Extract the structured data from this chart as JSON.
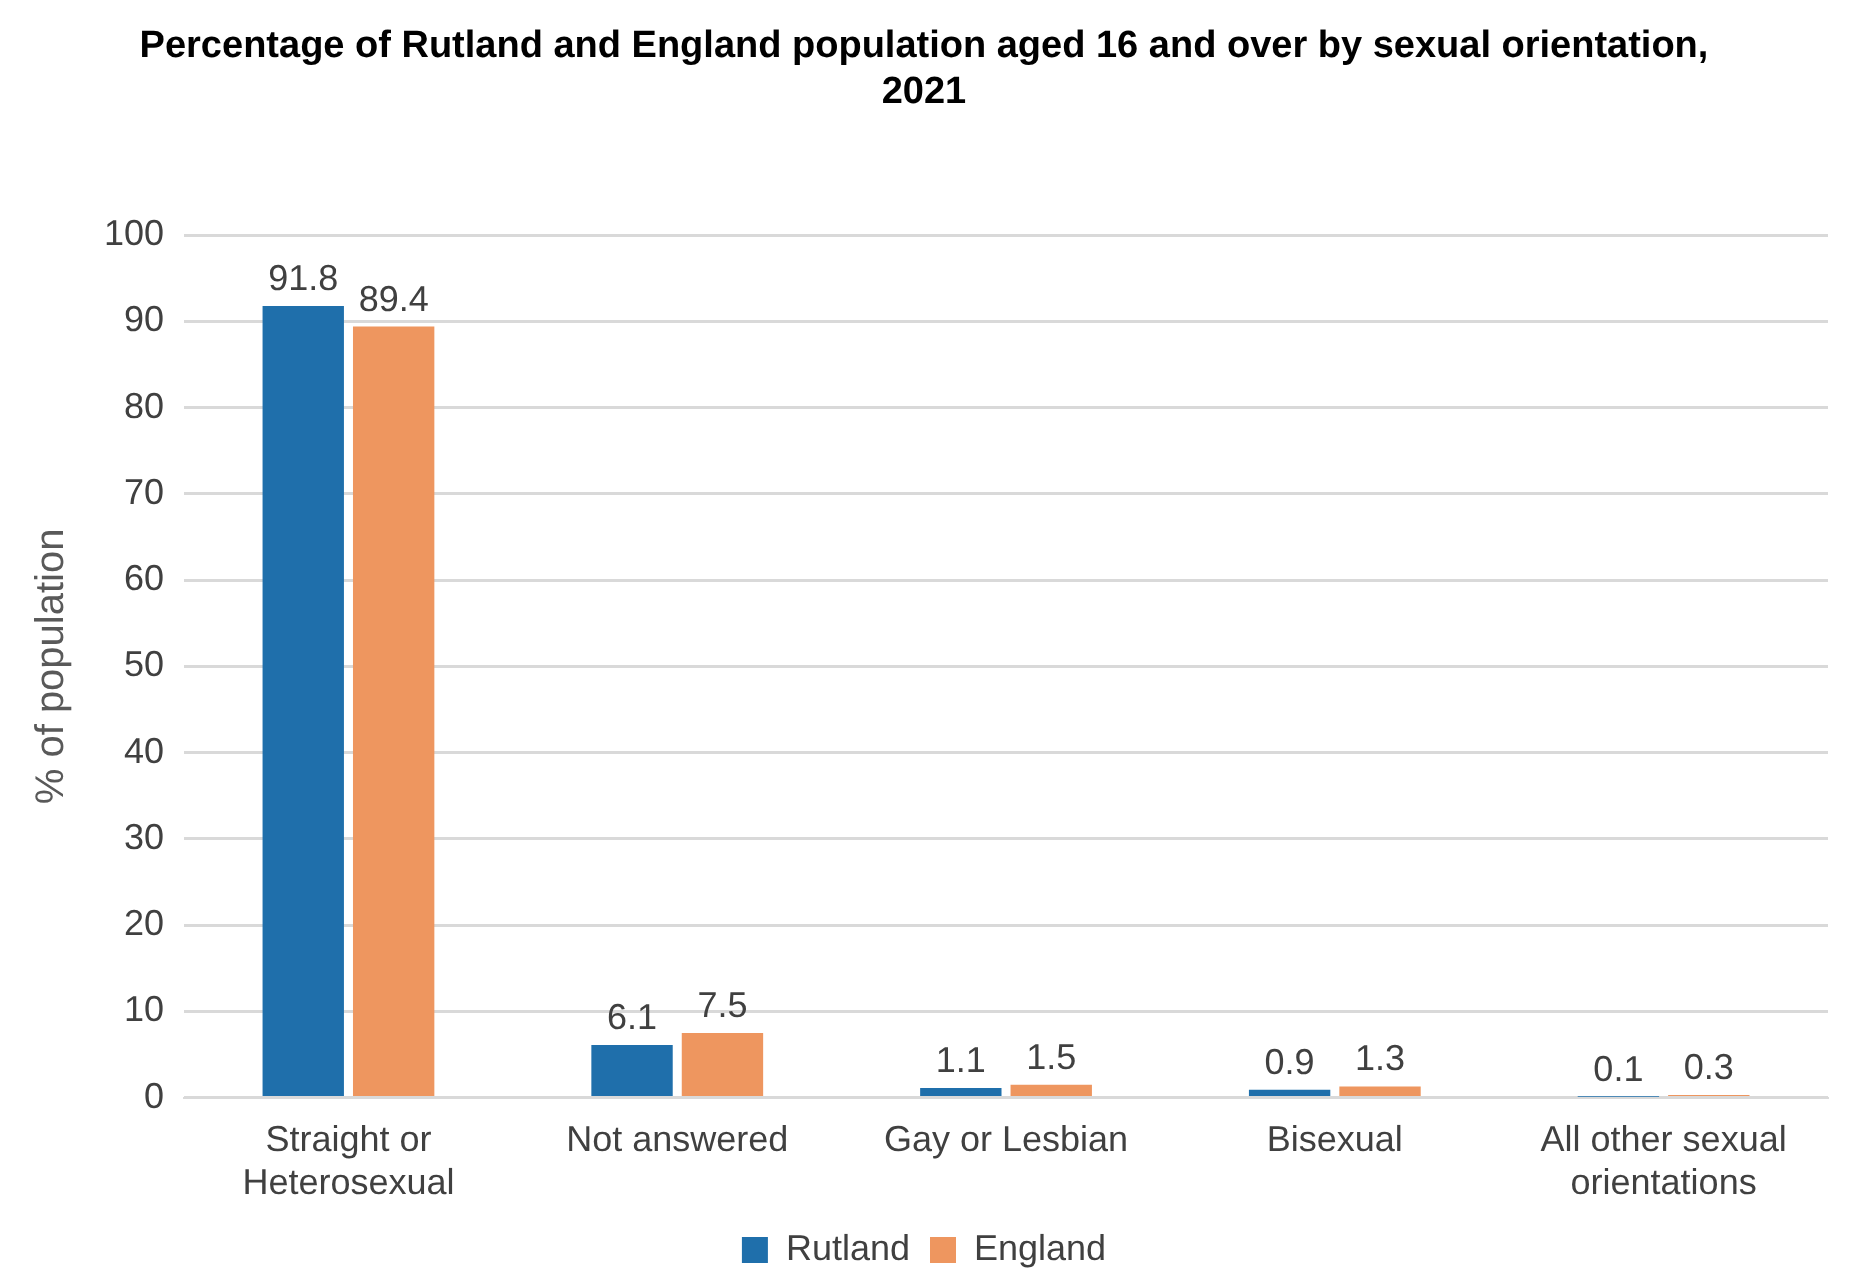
{
  "chart_data": {
    "type": "bar",
    "title": "Percentage of Rutland and England population aged 16 and over by sexual orientation, 2021",
    "ylabel": "% of population",
    "categories": [
      "Straight or Heterosexual",
      "Not answered",
      "Gay or Lesbian",
      "Bisexual",
      "All other sexual orientations"
    ],
    "series": [
      {
        "name": "Rutland",
        "color": "#1f6fab",
        "values": [
          91.8,
          6.1,
          1.1,
          0.9,
          0.1
        ]
      },
      {
        "name": "England",
        "color": "#ee965f",
        "values": [
          89.4,
          7.5,
          1.5,
          1.3,
          0.3
        ]
      }
    ],
    "ylim": [
      0,
      100
    ],
    "yticks": [
      0,
      10,
      20,
      30,
      40,
      50,
      60,
      70,
      80,
      90,
      100
    ],
    "grid": "y",
    "legend": "bottom",
    "data_labels": true
  }
}
